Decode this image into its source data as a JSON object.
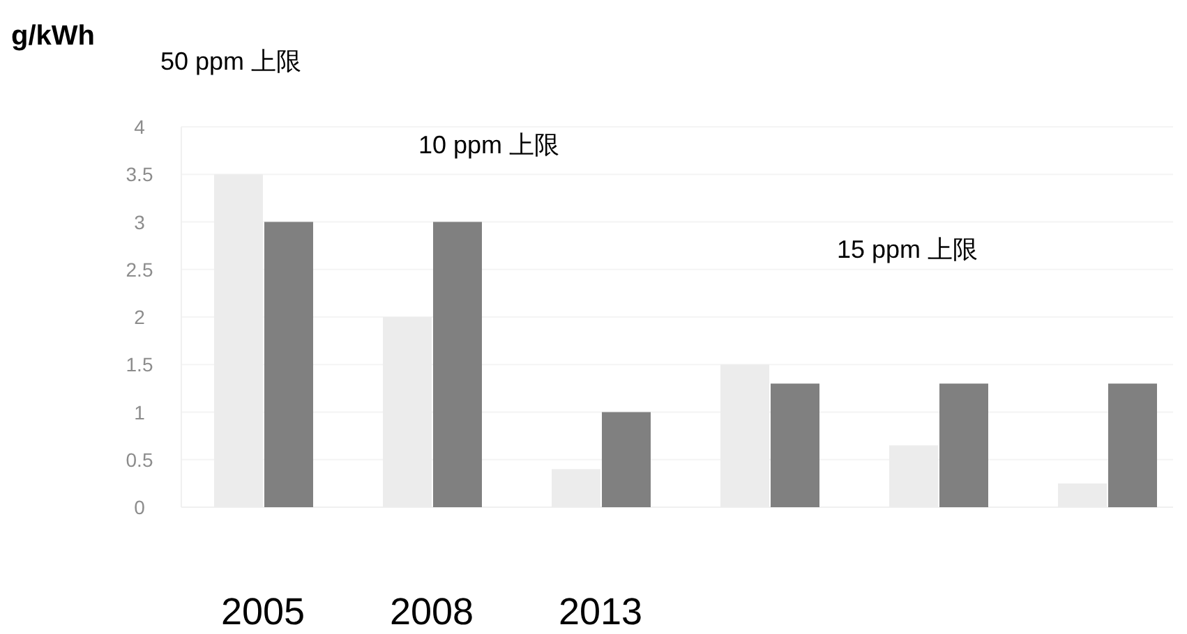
{
  "chart_data": {
    "type": "bar",
    "ylabel": "g/kWh",
    "categories": [
      null,
      null,
      null,
      null,
      null,
      null
    ],
    "series": [
      {
        "color": "#ececec",
        "values": [
          3.5,
          2.0,
          0.4,
          1.5,
          0.65,
          0.25
        ]
      },
      {
        "color": "#808080",
        "values": [
          3.0,
          3.0,
          1.0,
          1.3,
          1.3,
          1.3
        ]
      }
    ],
    "ylim": [
      0,
      4
    ],
    "yticks": [
      0,
      0.5,
      1,
      1.5,
      2,
      2.5,
      3,
      3.5,
      4
    ],
    "grid": "y",
    "annotations": [
      "50 ppm 上限",
      "10 ppm 上限",
      "15 ppm 上限",
      "2005",
      "2008",
      "2013"
    ]
  }
}
